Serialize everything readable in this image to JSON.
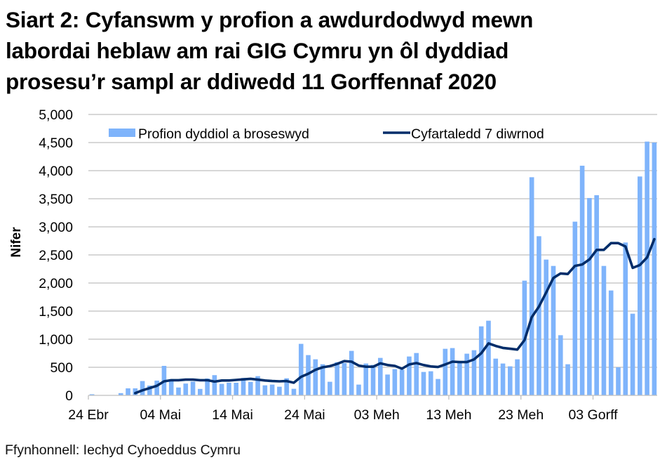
{
  "title_lines": [
    "Siart 2: Cyfanswm y profion a awdurdodwyd mewn",
    "labordai heblaw am rai GIG Cymru yn ôl dyddiad",
    "prosesu’r sampl ar ddiwedd 11 Gorffennaf 2020"
  ],
  "source": "Ffynhonnell: Iechyd Cyhoeddus Cymru",
  "colors": {
    "bar": "#7FB4FB",
    "line": "#002D6A",
    "grid": "#BFBFBF",
    "axis": "#BFBFBF"
  },
  "chart_data": {
    "type": "bar",
    "title": "Siart 2: Cyfanswm y profion a awdurdodwyd mewn labordai heblaw am rai GIG Cymru yn ôl dyddiad prosesu’r sampl ar ddiwedd 11 Gorffennaf 2020",
    "xlabel": "",
    "ylabel": "Nifer",
    "ylim": [
      0,
      5000
    ],
    "yticks": [
      0,
      500,
      1000,
      1500,
      2000,
      2500,
      3000,
      3500,
      4000,
      4500,
      5000
    ],
    "ytick_labels": [
      "0",
      "500",
      "1,000",
      "1,500",
      "2,000",
      "2,500",
      "3,000",
      "3,500",
      "4,000",
      "4,500",
      "5,000"
    ],
    "grid": true,
    "legend_position": "top",
    "x_start": "24 Ebr 2020",
    "x_end": "11 Gorff 2020",
    "x_tick_labels": [
      {
        "index": 0,
        "label": "24 Ebr"
      },
      {
        "index": 10,
        "label": "04 Mai"
      },
      {
        "index": 20,
        "label": "14 Mai"
      },
      {
        "index": 30,
        "label": "24 Mai"
      },
      {
        "index": 40,
        "label": "03 Meh"
      },
      {
        "index": 50,
        "label": "13 Meh"
      },
      {
        "index": 60,
        "label": "23 Meh"
      },
      {
        "index": 70,
        "label": "03 Gorff"
      }
    ],
    "series": [
      {
        "name": "Profion dyddiol a broseswyd",
        "type": "bar",
        "values": [
          20,
          0,
          0,
          0,
          40,
          125,
          125,
          255,
          175,
          263,
          525,
          290,
          140,
          210,
          245,
          115,
          300,
          360,
          205,
          225,
          225,
          310,
          240,
          342,
          179,
          192,
          154,
          304,
          117,
          917,
          717,
          642,
          554,
          242,
          590,
          575,
          792,
          192,
          567,
          542,
          667,
          371,
          467,
          458,
          692,
          754,
          417,
          429,
          292,
          829,
          842,
          583,
          742,
          804,
          1229,
          1329,
          654,
          567,
          517,
          642,
          2042,
          3883,
          2833,
          2417,
          2304,
          1071,
          554,
          3092,
          4088,
          3513,
          3563,
          2304,
          1867,
          500,
          2721,
          1454,
          3896,
          4517,
          4500
        ]
      },
      {
        "name": "Cyfartaledd 7 diwrnod",
        "type": "line",
        "start_index": 6,
        "values": [
          40,
          90,
          130,
          170,
          250,
          270,
          270,
          280,
          280,
          270,
          270,
          245,
          265,
          265,
          275,
          285,
          295,
          280,
          265,
          255,
          250,
          255,
          225,
          330,
          385,
          455,
          500,
          520,
          560,
          610,
          600,
          530,
          510,
          510,
          570,
          540,
          525,
          475,
          550,
          575,
          540,
          515,
          505,
          550,
          600,
          592,
          592,
          640,
          750,
          925,
          880,
          845,
          830,
          815,
          985,
          1390,
          1580,
          1830,
          2090,
          2170,
          2160,
          2305,
          2330,
          2420,
          2590,
          2590,
          2710,
          2710,
          2650,
          2270,
          2320,
          2455,
          2780
        ]
      }
    ]
  }
}
